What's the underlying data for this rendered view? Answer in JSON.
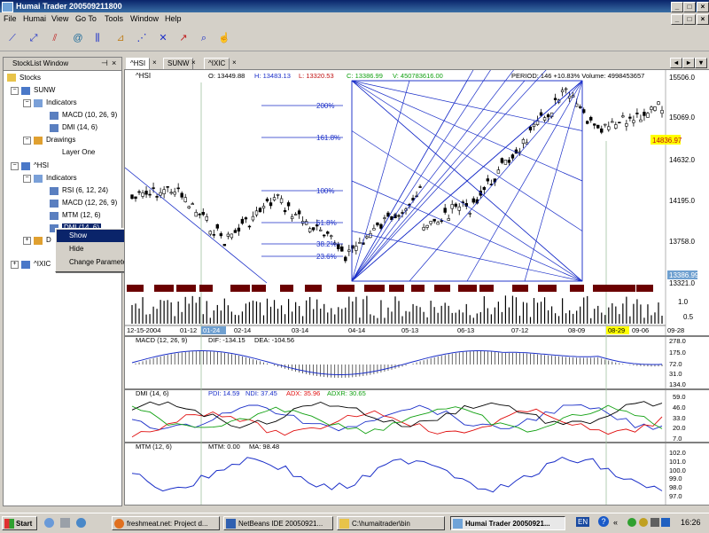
{
  "window": {
    "title": "Humai Trader 200509211800"
  },
  "menu": [
    "File",
    "Humai",
    "View",
    "Go To",
    "Tools",
    "Window",
    "Help"
  ],
  "panel": {
    "title": "StockList Window",
    "tree": {
      "root": "Stocks",
      "sunw": "SUNW",
      "sunw_indicators": "Indicators",
      "sunw_macd": "MACD (10, 26, 9)",
      "sunw_dmi": "DMI (14, 6)",
      "sunw_drawings": "Drawings",
      "sunw_layer": "Layer One",
      "hsi": "^HSI",
      "hsi_indicators": "Indicators",
      "hsi_rsi": "RSI (6, 12, 24)",
      "hsi_macd": "MACD (12, 26, 9)",
      "hsi_mtm": "MTM (12, 6)",
      "hsi_dmi": "DMI (14, 6)",
      "hsi_drawings": "D",
      "ixic": "^IXIC"
    }
  },
  "context_menu": {
    "show": "Show",
    "hide": "Hide",
    "change": "Change Parameters"
  },
  "tabs": [
    "^HSI",
    "SUNW",
    "^IXIC"
  ],
  "chart": {
    "symbol": "^HSI",
    "ohlc": {
      "o": "O: 13449.88",
      "h": "H: 13483.13",
      "l": "L: 13320.53",
      "c": "C: 13386.99",
      "v": "V: 450783616.00"
    },
    "period_info": "PERIOD: 146  +10.83%  Volume: 4998453657",
    "fib_levels": [
      "200%",
      "161.8%",
      "100%",
      "61.8%",
      "38.2%",
      "23.6%"
    ],
    "price_axis": [
      "15506.0",
      "15069.0",
      "14836.97",
      "14632.0",
      "14195.0",
      "13758.0",
      "13321.0"
    ],
    "crosshair_price": "13386.99",
    "volume_axis": [
      "1.0",
      "0.5"
    ],
    "date_labels": [
      "12-15-2004",
      "01-12",
      "01-24",
      "02-14",
      "03-14",
      "04-14",
      "05-13",
      "06-13",
      "07-12",
      "08-09",
      "08-29",
      "09-06",
      "09-28"
    ],
    "macd": {
      "title": "MACD (12, 26, 9)",
      "dif": "DIF: -134.15",
      "dea": "DEA: -104.56",
      "axis": [
        "278.0",
        "175.0",
        "72.0",
        "31.0",
        "134.0"
      ]
    },
    "dmi": {
      "title": "DMI (14, 6)",
      "pdi": "PDI: 14.59",
      "ndi": "NDI: 37.45",
      "adx": "ADX: 35.96",
      "adxr": "ADXR: 30.65",
      "axis": [
        "59.0",
        "46.0",
        "33.0",
        "20.0",
        "7.0"
      ]
    },
    "mtm": {
      "title": "MTM (12, 6)",
      "mtm": "MTM:  0.00",
      "ma": "MA: 98.48",
      "axis": [
        "102.0",
        "101.0",
        "100.0",
        "99.0",
        "98.0",
        "97.0"
      ]
    },
    "colors": {
      "candle": "#000000",
      "fib": "#1a2ec8",
      "marker": "#6b0000",
      "macd": "#1a2ec8",
      "pdi": "#1a2ec8",
      "ndi": "#e01010",
      "adx": "#000000",
      "adxr": "#10a010",
      "highlight": "#ffff00"
    }
  },
  "taskbar": {
    "start": "Start",
    "items": [
      "freshmeat.net: Project d...",
      "NetBeans IDE 20050921...",
      "C:\\humaitrader\\bin",
      "Humai Trader 20050921..."
    ],
    "lang": "EN",
    "clock": "16:26"
  }
}
